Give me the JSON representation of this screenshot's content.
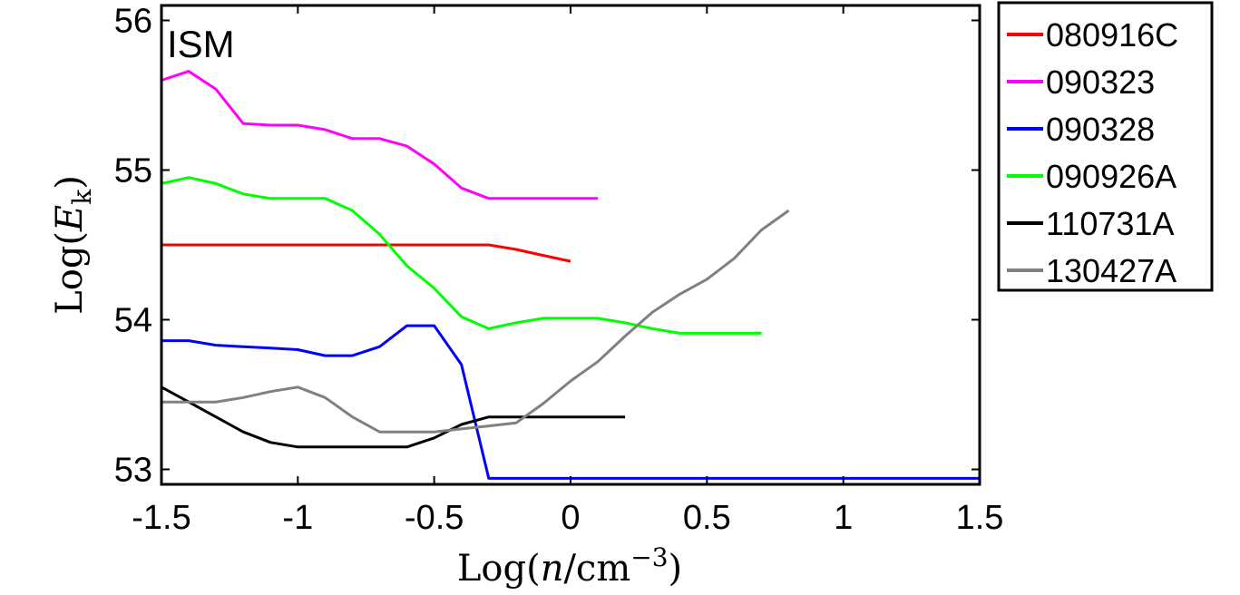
{
  "chart_data": {
    "type": "line",
    "annotation": "ISM",
    "xlabel": {
      "prefix": "Log(",
      "var": "n",
      "mid": "/cm",
      "sup": "−3",
      "suffix": ")"
    },
    "ylabel": {
      "prefix": "Log(",
      "var": "E",
      "sub": "k",
      "suffix": ")"
    },
    "xlim": [
      -1.5,
      1.5
    ],
    "ylim": [
      52.9,
      56.1
    ],
    "xticks": [
      -1.5,
      -1,
      -0.5,
      0,
      0.5,
      1,
      1.5
    ],
    "xtick_labels": [
      "-1.5",
      "-1",
      "-0.5",
      "0",
      "0.5",
      "1",
      "1.5"
    ],
    "yticks": [
      53,
      54,
      55,
      56
    ],
    "ytick_labels": [
      "53",
      "54",
      "55",
      "56"
    ],
    "series": [
      {
        "name": "080916C",
        "color": "#ff0000",
        "x": [
          -1.5,
          -0.3,
          -0.2,
          -0.1,
          0.0
        ],
        "y": [
          54.5,
          54.5,
          54.47,
          54.43,
          54.39
        ]
      },
      {
        "name": "090323",
        "color": "#ff00ff",
        "x": [
          -1.5,
          -1.4,
          -1.3,
          -1.2,
          -1.1,
          -1.0,
          -0.9,
          -0.8,
          -0.7,
          -0.6,
          -0.5,
          -0.4,
          -0.3,
          0.1
        ],
        "y": [
          55.6,
          55.66,
          55.54,
          55.31,
          55.3,
          55.3,
          55.27,
          55.21,
          55.21,
          55.16,
          55.04,
          54.88,
          54.81,
          54.81
        ]
      },
      {
        "name": "090328",
        "color": "#0000ff",
        "x": [
          -1.5,
          -1.4,
          -1.3,
          -1.2,
          -1.1,
          -1.0,
          -0.9,
          -0.8,
          -0.7,
          -0.6,
          -0.5,
          -0.4,
          -0.3,
          1.5
        ],
        "y": [
          53.86,
          53.86,
          53.83,
          53.82,
          53.81,
          53.8,
          53.76,
          53.76,
          53.82,
          53.96,
          53.96,
          53.7,
          52.94,
          52.94
        ]
      },
      {
        "name": "090926A",
        "color": "#00ff00",
        "x": [
          -1.5,
          -1.4,
          -1.3,
          -1.2,
          -1.1,
          -1.0,
          -0.9,
          -0.8,
          -0.7,
          -0.6,
          -0.5,
          -0.4,
          -0.3,
          -0.2,
          -0.1,
          0.0,
          0.1,
          0.2,
          0.3,
          0.4,
          0.7
        ],
        "y": [
          54.91,
          54.95,
          54.91,
          54.84,
          54.81,
          54.81,
          54.81,
          54.73,
          54.57,
          54.36,
          54.21,
          54.02,
          53.94,
          53.98,
          54.01,
          54.01,
          54.01,
          53.98,
          53.94,
          53.91,
          53.91
        ]
      },
      {
        "name": "110731A",
        "color": "#000000",
        "x": [
          -1.5,
          -1.4,
          -1.3,
          -1.2,
          -1.1,
          -1.0,
          -0.9,
          -0.8,
          -0.7,
          -0.6,
          -0.5,
          -0.4,
          -0.3,
          0.2
        ],
        "y": [
          53.55,
          53.45,
          53.35,
          53.25,
          53.18,
          53.15,
          53.15,
          53.15,
          53.15,
          53.15,
          53.21,
          53.3,
          53.35,
          53.35
        ]
      },
      {
        "name": "130427A",
        "color": "#808080",
        "x": [
          -1.5,
          -1.4,
          -1.3,
          -1.2,
          -1.1,
          -1.0,
          -0.9,
          -0.8,
          -0.7,
          -0.6,
          -0.5,
          -0.4,
          -0.3,
          -0.2,
          -0.1,
          0.0,
          0.1,
          0.2,
          0.3,
          0.4,
          0.5,
          0.6,
          0.7,
          0.8
        ],
        "y": [
          53.45,
          53.45,
          53.45,
          53.48,
          53.52,
          53.55,
          53.48,
          53.35,
          53.25,
          53.25,
          53.25,
          53.27,
          53.29,
          53.31,
          53.44,
          53.59,
          53.72,
          53.89,
          54.05,
          54.17,
          54.27,
          54.41,
          54.6,
          54.73
        ]
      }
    ]
  }
}
